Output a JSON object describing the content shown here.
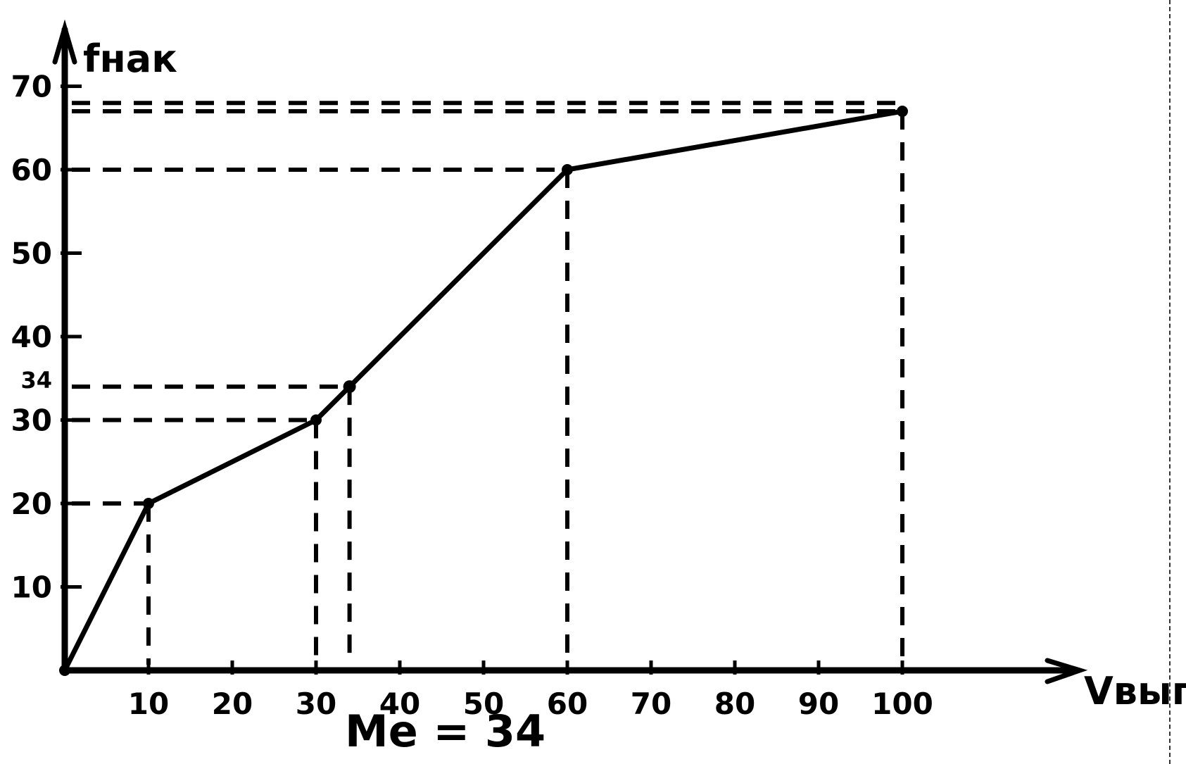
{
  "chart_data": {
    "type": "line",
    "title": "",
    "xlabel": "Vвып",
    "ylabel": "fнак",
    "xlim": [
      0,
      100
    ],
    "ylim": [
      0,
      70
    ],
    "x_ticks": [
      10,
      20,
      30,
      40,
      50,
      60,
      70,
      80,
      90,
      100
    ],
    "x_tick_labels": [
      "10",
      "20",
      "30",
      "40",
      "50",
      "60",
      "70",
      "80",
      "90",
      "100"
    ],
    "y_ticks": [
      10,
      20,
      30,
      34,
      40,
      50,
      60,
      70
    ],
    "y_tick_labels": [
      "10",
      "20",
      "30",
      "34",
      "40",
      "50",
      "60",
      "70"
    ],
    "grid": false,
    "series": [
      {
        "x": [
          0,
          10,
          30,
          60,
          100
        ],
        "y": [
          0,
          20,
          30,
          60,
          67
        ]
      }
    ],
    "median_point": {
      "x": 34,
      "y": 34
    },
    "guide_lines": [
      {
        "x": 10,
        "y": 20
      },
      {
        "x": 30,
        "y": 30
      },
      {
        "x": 34,
        "y": 34
      },
      {
        "x": 60,
        "y": 60
      },
      {
        "x": 100,
        "y": 67
      }
    ],
    "annotation": "Me = 34",
    "colors": {
      "ink": "#000000",
      "background": "#ffffff"
    }
  }
}
